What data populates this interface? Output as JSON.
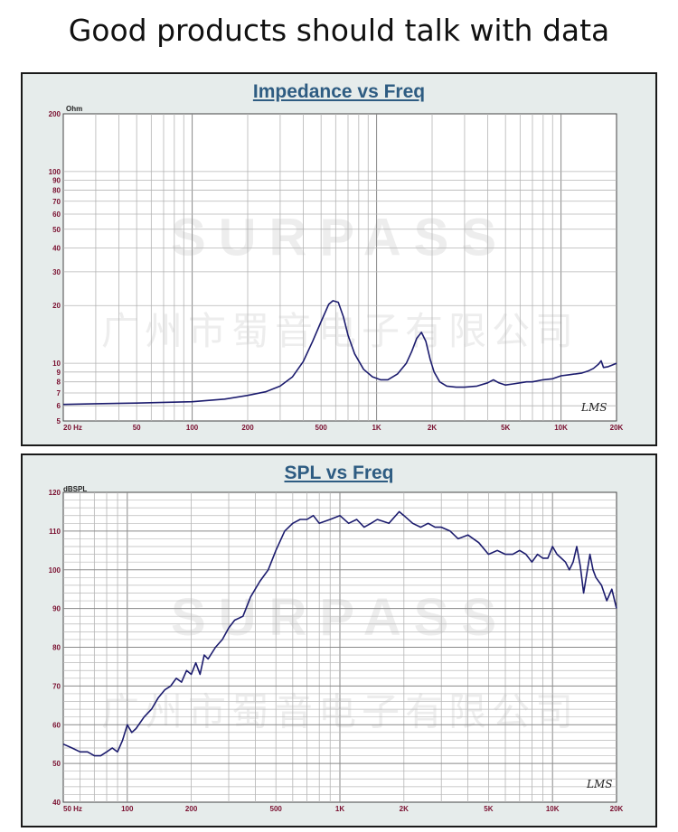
{
  "headline": "Good products should talk with data",
  "chart_data": [
    {
      "type": "line",
      "title": "Impedance vs Freq",
      "ylabel": "Ohm",
      "xscale": "log",
      "yscale": "log",
      "xlim": [
        20,
        20000
      ],
      "ylim": [
        5,
        200
      ],
      "grid": true,
      "x_ticks": [
        {
          "v": 20,
          "label": "20 Hz"
        },
        {
          "v": 50,
          "label": "50"
        },
        {
          "v": 100,
          "label": "100"
        },
        {
          "v": 200,
          "label": "200"
        },
        {
          "v": 500,
          "label": "500"
        },
        {
          "v": 1000,
          "label": "1K"
        },
        {
          "v": 2000,
          "label": "2K"
        },
        {
          "v": 5000,
          "label": "5K"
        },
        {
          "v": 10000,
          "label": "10K"
        },
        {
          "v": 20000,
          "label": "20K"
        }
      ],
      "y_ticks": [
        {
          "v": 5,
          "label": "5"
        },
        {
          "v": 6,
          "label": "6"
        },
        {
          "v": 7,
          "label": "7"
        },
        {
          "v": 8,
          "label": "8"
        },
        {
          "v": 9,
          "label": "9"
        },
        {
          "v": 10,
          "label": "10"
        },
        {
          "v": 20,
          "label": "20"
        },
        {
          "v": 30,
          "label": "30"
        },
        {
          "v": 40,
          "label": "40"
        },
        {
          "v": 50,
          "label": "50"
        },
        {
          "v": 60,
          "label": "60"
        },
        {
          "v": 70,
          "label": "70"
        },
        {
          "v": 80,
          "label": "80"
        },
        {
          "v": 90,
          "label": "90"
        },
        {
          "v": 100,
          "label": "100"
        },
        {
          "v": 200,
          "label": "200"
        }
      ],
      "corner_mark": "LMS",
      "watermark": {
        "brand": "SURPASS",
        "company": "广州市蜀音电子有限公司"
      },
      "line_color": "#1c1c6e",
      "series": [
        {
          "x": [
            20,
            30,
            50,
            70,
            100,
            150,
            200,
            250,
            300,
            350,
            400,
            450,
            500,
            550,
            580,
            620,
            660,
            700,
            760,
            850,
            950,
            1050,
            1150,
            1300,
            1450,
            1550,
            1650,
            1750,
            1850,
            1950,
            2050,
            2200,
            2400,
            2700,
            3000,
            3500,
            4000,
            4300,
            4600,
            5000,
            5500,
            6000,
            6500,
            7000,
            8000,
            9000,
            10000,
            11000,
            12000,
            13000,
            14000,
            15000,
            16000,
            16500,
            17000,
            18000,
            19000,
            20000
          ],
          "y": [
            6.1,
            6.15,
            6.2,
            6.25,
            6.3,
            6.5,
            6.8,
            7.1,
            7.6,
            8.5,
            10.2,
            13,
            16.5,
            20.3,
            21.2,
            20.8,
            17.5,
            14,
            11.2,
            9.3,
            8.5,
            8.2,
            8.2,
            8.8,
            10,
            11.5,
            13.5,
            14.5,
            13,
            10.5,
            9,
            8,
            7.6,
            7.5,
            7.5,
            7.6,
            7.9,
            8.2,
            7.9,
            7.7,
            7.8,
            7.9,
            8,
            8,
            8.2,
            8.3,
            8.6,
            8.7,
            8.8,
            8.9,
            9.1,
            9.4,
            9.9,
            10.3,
            9.5,
            9.6,
            9.8,
            10
          ]
        }
      ]
    },
    {
      "type": "line",
      "title": "SPL vs Freq",
      "ylabel": "dBSPL",
      "xscale": "log",
      "xlim": [
        50,
        20000
      ],
      "ylim": [
        40,
        120
      ],
      "grid": true,
      "x_ticks": [
        {
          "v": 50,
          "label": "50 Hz"
        },
        {
          "v": 100,
          "label": "100"
        },
        {
          "v": 200,
          "label": "200"
        },
        {
          "v": 500,
          "label": "500"
        },
        {
          "v": 1000,
          "label": "1K"
        },
        {
          "v": 2000,
          "label": "2K"
        },
        {
          "v": 5000,
          "label": "5K"
        },
        {
          "v": 10000,
          "label": "10K"
        },
        {
          "v": 20000,
          "label": "20K"
        }
      ],
      "y_ticks": [
        {
          "v": 40,
          "label": "40"
        },
        {
          "v": 50,
          "label": "50"
        },
        {
          "v": 60,
          "label": "60"
        },
        {
          "v": 70,
          "label": "70"
        },
        {
          "v": 80,
          "label": "80"
        },
        {
          "v": 90,
          "label": "90"
        },
        {
          "v": 100,
          "label": "100"
        },
        {
          "v": 110,
          "label": "110"
        },
        {
          "v": 120,
          "label": "120"
        }
      ],
      "corner_mark": "LMS",
      "watermark": {
        "brand": "SURPASS",
        "company": "广州市蜀音电子有限公司"
      },
      "line_color": "#1c1c6e",
      "series": [
        {
          "x": [
            50,
            55,
            60,
            65,
            70,
            75,
            80,
            85,
            90,
            95,
            100,
            105,
            110,
            120,
            130,
            140,
            150,
            160,
            170,
            180,
            190,
            200,
            210,
            220,
            230,
            240,
            260,
            280,
            300,
            320,
            350,
            380,
            420,
            460,
            500,
            550,
            600,
            650,
            700,
            750,
            800,
            900,
            1000,
            1100,
            1200,
            1300,
            1400,
            1500,
            1700,
            1900,
            2000,
            2200,
            2400,
            2600,
            2800,
            3000,
            3300,
            3600,
            4000,
            4500,
            5000,
            5500,
            6000,
            6500,
            7000,
            7500,
            8000,
            8500,
            9000,
            9500,
            10000,
            10500,
            11000,
            11500,
            12000,
            12500,
            13000,
            13500,
            14000,
            15000,
            15500,
            16000,
            17000,
            18000,
            19000,
            20000
          ],
          "y": [
            55,
            54,
            53,
            53,
            52,
            52,
            53,
            54,
            53,
            56,
            60,
            58,
            59,
            62,
            64,
            67,
            69,
            70,
            72,
            71,
            74,
            73,
            76,
            73,
            78,
            77,
            80,
            82,
            85,
            87,
            88,
            93,
            97,
            100,
            105,
            110,
            112,
            113,
            113,
            114,
            112,
            113,
            114,
            112,
            113,
            111,
            112,
            113,
            112,
            115,
            114,
            112,
            111,
            112,
            111,
            111,
            110,
            108,
            109,
            107,
            104,
            105,
            104,
            104,
            105,
            104,
            102,
            104,
            103,
            103,
            106,
            104,
            103,
            102,
            100,
            102,
            106,
            101,
            94,
            104,
            100,
            98,
            96,
            92,
            95,
            90
          ]
        }
      ]
    }
  ]
}
